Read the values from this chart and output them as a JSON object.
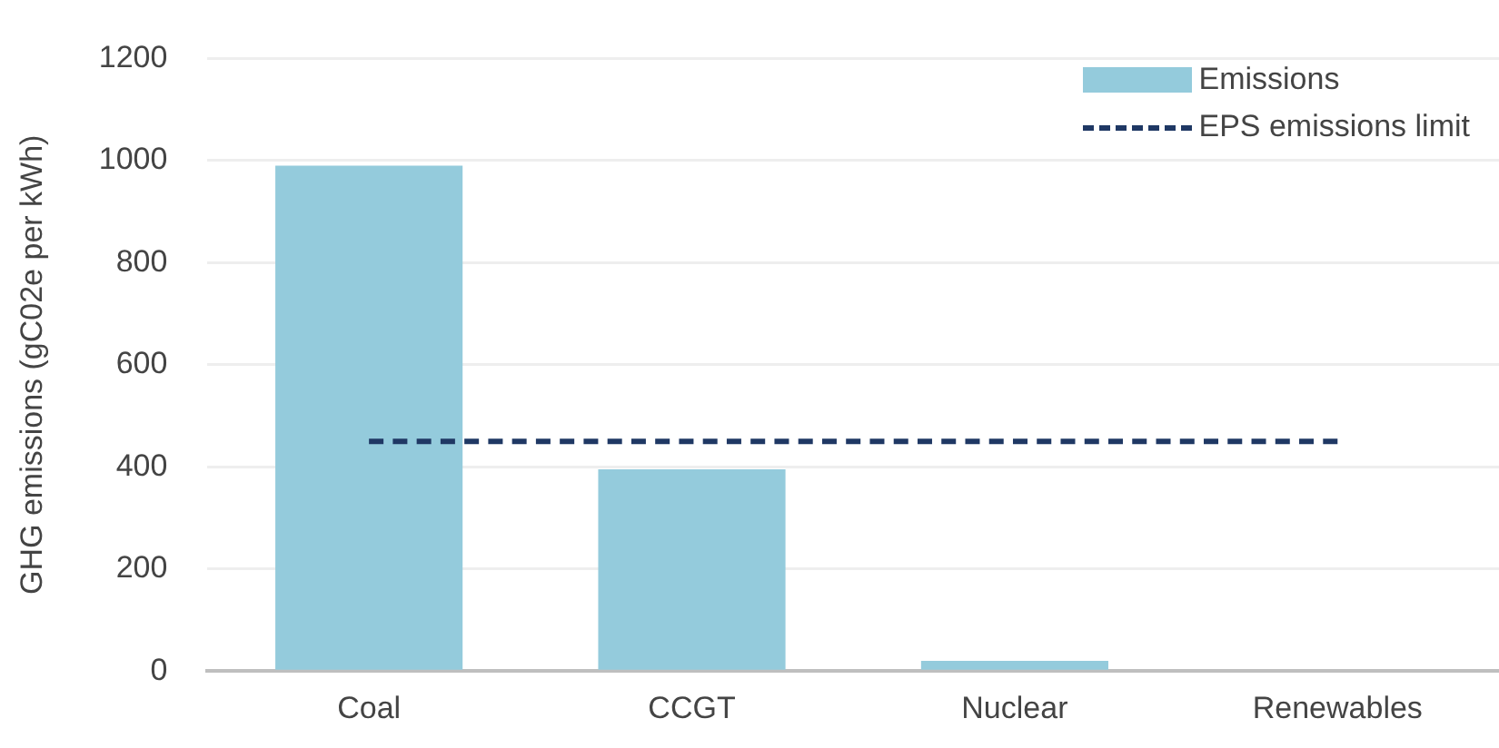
{
  "chart_data": {
    "type": "bar",
    "ylabel": "GHG emissions (gC02e per kWh)",
    "categories": [
      "Coal",
      "CCGT",
      "Nuclear",
      "Renewables"
    ],
    "series": [
      {
        "name": "Emissions",
        "color": "#94cbdc",
        "values": [
          990,
          395,
          20,
          0
        ]
      },
      {
        "name": "EPS emissions limit",
        "type": "line",
        "color": "#1f3864",
        "line_style": "dashed",
        "marker": "none",
        "values": [
          450,
          450,
          450,
          450
        ]
      }
    ],
    "ylim": [
      0,
      1200
    ],
    "yticks": [
      0,
      200,
      400,
      600,
      800,
      1000,
      1200
    ],
    "grid": "y",
    "legend": "top right"
  }
}
